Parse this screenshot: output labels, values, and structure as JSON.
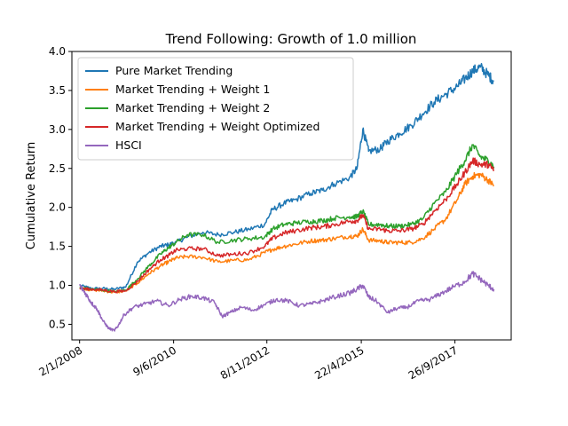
{
  "chart_data": {
    "type": "line",
    "title": "Trend Following: Growth of 1.0 million",
    "xlabel": "",
    "ylabel": "Cumulative Return",
    "ylim": [
      0.3,
      4.0
    ],
    "yticks": [
      "0.5",
      "1.0",
      "1.5",
      "2.0",
      "2.5",
      "3.0",
      "3.5",
      "4.0"
    ],
    "x_ticks": [
      "2/1/2008",
      "9/6/2010",
      "8/11/2012",
      "22/4/2015",
      "26/9/2017"
    ],
    "x_tick_values": [
      2008.0,
      2010.44,
      2012.86,
      2015.31,
      2017.74
    ],
    "xlim": [
      2007.8,
      2019.2
    ],
    "grid": false,
    "legend_position": "top-left",
    "series": [
      {
        "name": "Pure Market Trending",
        "color": "#1f77b4",
        "x": [
          2008.0,
          2008.3,
          2008.6,
          2008.9,
          2009.2,
          2009.5,
          2009.8,
          2010.1,
          2010.3,
          2010.5,
          2010.8,
          2011.2,
          2011.6,
          2012.0,
          2012.4,
          2012.8,
          2013.0,
          2013.3,
          2013.6,
          2014.0,
          2014.3,
          2014.6,
          2015.0,
          2015.2,
          2015.35,
          2015.5,
          2015.8,
          2016.0,
          2016.3,
          2016.6,
          2016.9,
          2017.2,
          2017.5,
          2017.8,
          2018.0,
          2018.2,
          2018.4,
          2018.6,
          2018.75
        ],
        "y": [
          1.0,
          0.96,
          0.96,
          0.95,
          0.98,
          1.3,
          1.42,
          1.5,
          1.52,
          1.55,
          1.62,
          1.68,
          1.65,
          1.68,
          1.72,
          1.78,
          1.97,
          2.05,
          2.1,
          2.18,
          2.22,
          2.3,
          2.38,
          2.5,
          3.0,
          2.72,
          2.75,
          2.85,
          2.95,
          3.05,
          3.2,
          3.35,
          3.45,
          3.55,
          3.65,
          3.75,
          3.8,
          3.7,
          3.62
        ]
      },
      {
        "name": "Market Trending + Weight 1",
        "color": "#ff7f0e",
        "x": [
          2008.0,
          2008.3,
          2008.6,
          2008.9,
          2009.2,
          2009.5,
          2009.8,
          2010.1,
          2010.3,
          2010.5,
          2010.8,
          2011.2,
          2011.6,
          2012.0,
          2012.4,
          2012.8,
          2013.0,
          2013.3,
          2013.6,
          2014.0,
          2014.3,
          2014.6,
          2015.0,
          2015.2,
          2015.35,
          2015.5,
          2015.8,
          2016.0,
          2016.3,
          2016.6,
          2016.9,
          2017.2,
          2017.5,
          2017.8,
          2018.0,
          2018.2,
          2018.4,
          2018.6,
          2018.75
        ],
        "y": [
          0.97,
          0.94,
          0.93,
          0.91,
          0.93,
          1.03,
          1.15,
          1.25,
          1.3,
          1.35,
          1.37,
          1.36,
          1.3,
          1.32,
          1.33,
          1.42,
          1.46,
          1.5,
          1.53,
          1.57,
          1.58,
          1.6,
          1.63,
          1.63,
          1.72,
          1.58,
          1.57,
          1.55,
          1.55,
          1.55,
          1.6,
          1.72,
          1.85,
          2.1,
          2.3,
          2.4,
          2.42,
          2.35,
          2.28
        ]
      },
      {
        "name": "Market Trending + Weight 2",
        "color": "#2ca02c",
        "x": [
          2008.0,
          2008.3,
          2008.6,
          2008.9,
          2009.2,
          2009.5,
          2009.8,
          2010.1,
          2010.3,
          2010.5,
          2010.8,
          2011.2,
          2011.6,
          2012.0,
          2012.4,
          2012.8,
          2013.0,
          2013.3,
          2013.6,
          2014.0,
          2014.3,
          2014.6,
          2015.0,
          2015.2,
          2015.35,
          2015.5,
          2015.8,
          2016.0,
          2016.3,
          2016.6,
          2016.9,
          2017.2,
          2017.5,
          2017.8,
          2018.0,
          2018.2,
          2018.4,
          2018.6,
          2018.75
        ],
        "y": [
          0.97,
          0.95,
          0.94,
          0.92,
          0.94,
          1.08,
          1.25,
          1.4,
          1.48,
          1.55,
          1.65,
          1.65,
          1.55,
          1.58,
          1.6,
          1.62,
          1.72,
          1.78,
          1.8,
          1.82,
          1.83,
          1.86,
          1.88,
          1.88,
          1.95,
          1.78,
          1.78,
          1.76,
          1.76,
          1.78,
          1.85,
          2.05,
          2.2,
          2.45,
          2.6,
          2.8,
          2.65,
          2.6,
          2.52
        ]
      },
      {
        "name": "Market Trending + Weight Optimized",
        "color": "#d62728",
        "x": [
          2008.0,
          2008.3,
          2008.6,
          2008.9,
          2009.2,
          2009.5,
          2009.8,
          2010.1,
          2010.3,
          2010.5,
          2010.8,
          2011.2,
          2011.6,
          2012.0,
          2012.4,
          2012.8,
          2013.0,
          2013.3,
          2013.6,
          2014.0,
          2014.3,
          2014.6,
          2015.0,
          2015.2,
          2015.35,
          2015.5,
          2015.8,
          2016.0,
          2016.3,
          2016.6,
          2016.9,
          2017.2,
          2017.5,
          2017.8,
          2018.0,
          2018.2,
          2018.4,
          2018.6,
          2018.75
        ],
        "y": [
          0.96,
          0.95,
          0.94,
          0.92,
          0.93,
          1.05,
          1.2,
          1.33,
          1.38,
          1.45,
          1.47,
          1.47,
          1.38,
          1.4,
          1.42,
          1.5,
          1.6,
          1.67,
          1.7,
          1.74,
          1.75,
          1.78,
          1.82,
          1.83,
          1.9,
          1.72,
          1.72,
          1.7,
          1.7,
          1.72,
          1.78,
          1.95,
          2.1,
          2.3,
          2.45,
          2.6,
          2.55,
          2.55,
          2.48
        ]
      },
      {
        "name": "HSCI",
        "color": "#9467bd",
        "x": [
          2008.0,
          2008.15,
          2008.3,
          2008.45,
          2008.6,
          2008.75,
          2008.9,
          2009.0,
          2009.15,
          2009.4,
          2009.7,
          2010.0,
          2010.3,
          2010.6,
          2010.9,
          2011.2,
          2011.5,
          2011.7,
          2011.9,
          2012.2,
          2012.5,
          2012.8,
          2013.1,
          2013.4,
          2013.7,
          2014.0,
          2014.3,
          2014.6,
          2015.0,
          2015.2,
          2015.35,
          2015.5,
          2015.7,
          2016.0,
          2016.2,
          2016.5,
          2016.8,
          2017.1,
          2017.4,
          2017.7,
          2018.0,
          2018.2,
          2018.4,
          2018.6,
          2018.75
        ],
        "y": [
          1.0,
          0.9,
          0.78,
          0.7,
          0.55,
          0.45,
          0.42,
          0.48,
          0.62,
          0.72,
          0.76,
          0.8,
          0.74,
          0.82,
          0.86,
          0.84,
          0.78,
          0.6,
          0.65,
          0.72,
          0.68,
          0.75,
          0.82,
          0.8,
          0.74,
          0.76,
          0.8,
          0.85,
          0.9,
          0.95,
          1.0,
          0.85,
          0.8,
          0.65,
          0.7,
          0.72,
          0.8,
          0.82,
          0.9,
          0.98,
          1.05,
          1.15,
          1.08,
          1.0,
          0.95
        ]
      }
    ]
  }
}
